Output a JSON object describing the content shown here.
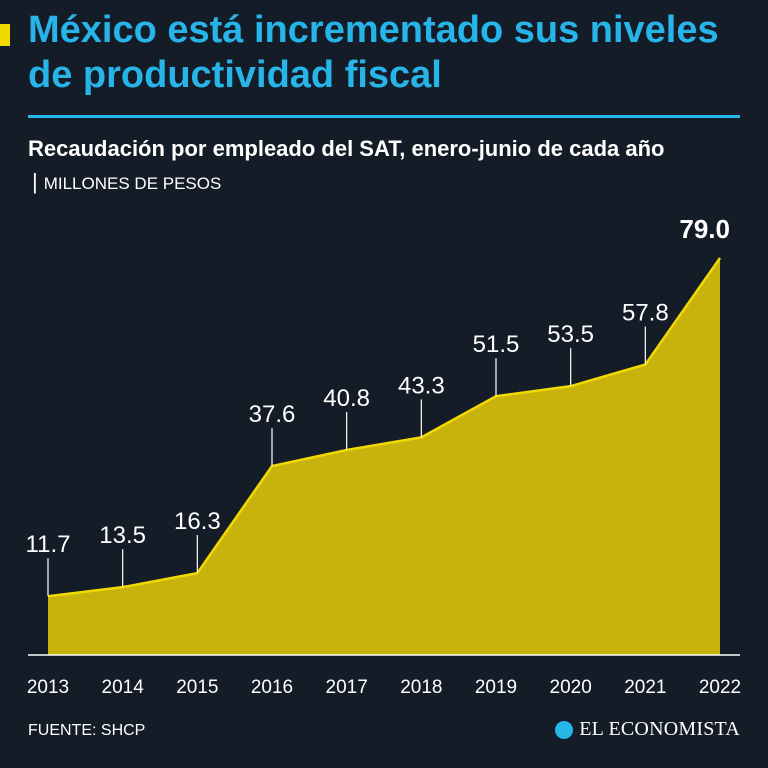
{
  "header": {
    "title": "México está incrementado sus niveles de productividad fiscal",
    "subtitle_bold": "Recaudación por empleado del SAT, enero-junio de cada año",
    "subtitle_sep": "|",
    "subtitle_units": "MILLONES DE PESOS"
  },
  "footer": {
    "source": "FUENTE: SHCP",
    "brand": "EL ECONOMISTA"
  },
  "colors": {
    "background": "#141c28",
    "accent": "#f2d900",
    "title": "#27b4e8",
    "area_fill": "#c8b20c",
    "area_stroke": "#f2d900"
  },
  "chart_data": {
    "type": "area",
    "categories": [
      "2013",
      "2014",
      "2015",
      "2016",
      "2017",
      "2018",
      "2019",
      "2020",
      "2021",
      "2022"
    ],
    "values": [
      11.7,
      13.5,
      16.3,
      37.6,
      40.8,
      43.3,
      51.5,
      53.5,
      57.8,
      79.0
    ],
    "value_labels": [
      "11.7",
      "13.5",
      "16.3",
      "37.6",
      "40.8",
      "43.3",
      "51.5",
      "53.5",
      "57.8",
      "79.0"
    ],
    "highlight_index": 9,
    "title": "Recaudación por empleado del SAT, enero-junio de cada año",
    "ylabel": "MILLONES DE PESOS",
    "xlabel": "",
    "ylim": [
      0,
      79.0
    ],
    "grid": false
  }
}
